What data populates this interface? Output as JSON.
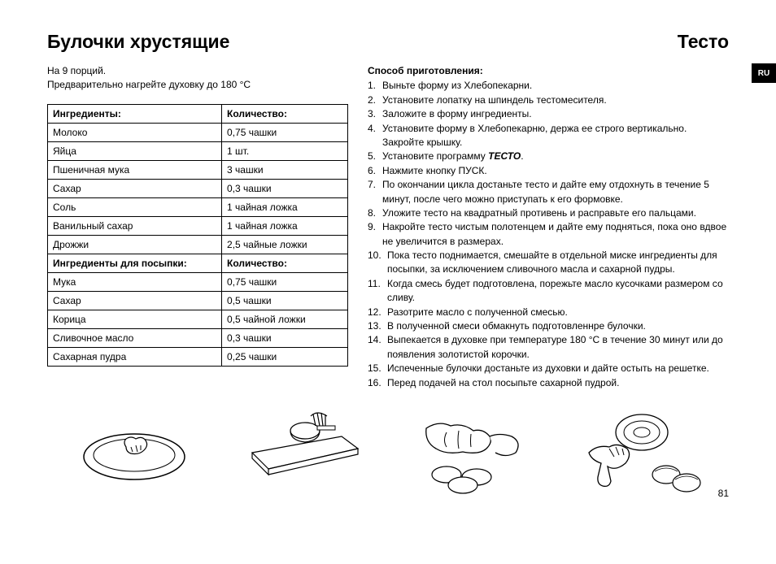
{
  "header": {
    "title_left": "Булочки хрустящие",
    "title_right": "Тесто",
    "lang_tab": "RU"
  },
  "intro": {
    "line1": "На 9 порций.",
    "line2": "Предварительно нагрейте духовку до 180 °C"
  },
  "table1": {
    "head_ingredient": "Ингредиенты:",
    "head_qty": "Количество:",
    "rows": [
      {
        "name": "Молоко",
        "qty": "0,75 чашки"
      },
      {
        "name": "Яйца",
        "qty": "1 шт."
      },
      {
        "name": "Пшеничная мука",
        "qty": "3 чашки"
      },
      {
        "name": "Сахар",
        "qty": "0,3 чашки"
      },
      {
        "name": "Соль",
        "qty": "1 чайная ложка"
      },
      {
        "name": "Ванильный сахар",
        "qty": "1 чайная ложка"
      },
      {
        "name": "Дрожжи",
        "qty": "2,5 чайные ложки"
      }
    ]
  },
  "table2": {
    "head_ingredient": "Ингредиенты для посыпки:",
    "head_qty": "Количество:",
    "rows": [
      {
        "name": "Мука",
        "qty": "0,75 чашки"
      },
      {
        "name": "Сахар",
        "qty": "0,5 чашки"
      },
      {
        "name": "Корица",
        "qty": "0,5 чайной ложки"
      },
      {
        "name": "Сливочное масло",
        "qty": "0,3 чашки"
      },
      {
        "name": "Сахарная пудра",
        "qty": "0,25 чашки"
      }
    ]
  },
  "method": {
    "title": "Способ приготовления:",
    "program_word": "ТЕСТО",
    "steps": [
      "Выньте форму из Хлебопекарни.",
      "Установите лопатку на шпиндель тестомесителя.",
      "Заложите в форму ингредиенты.",
      "Установите форму в Хлебопекарню, держа ее строго вертикально. Закройте крышку.",
      "Установите программу ",
      "Нажмите кнопку ПУСК.",
      "По окончании цикла достаньте тесто и дайте ему отдохнуть в течение 5 минут, после чего можно приступать к его формовке.",
      "Уложите тесто на квадратный противень и расправьте его пальцами.",
      "Накройте тесто чистым полотенцем и дайте ему подняться, пока оно вдвое не увеличится в размерах.",
      "Пока тесто поднимается, смешайте в отдельной миске ингредиенты для посыпки, за исключением сливочного масла и сахарной пудры.",
      "Когда смесь будет подготовлена, порежьте масло кусочками размером со сливу.",
      "Разотрите масло с полученной смесью.",
      "В полученной смеси обмакнуть подготовленнре булочки.",
      "Выпекается в духовке при температуре 180 °C в течение 30 минут или до появления золотистой корочки.",
      "Испеченные булочки достаньте из духовки и дайте остыть на решетке.",
      "Перед подачей на стол посыпьте сахарной пудрой."
    ]
  },
  "page_number": "81"
}
